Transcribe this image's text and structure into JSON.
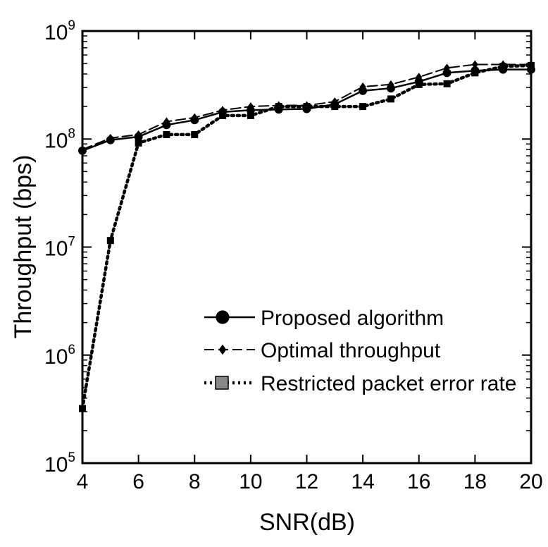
{
  "chart_data": {
    "type": "line",
    "xlabel": "SNR(dB)",
    "ylabel": "Throughput (bps)",
    "xlim": [
      4,
      20
    ],
    "ylim": [
      100000,
      1000000000
    ],
    "yscale": "log",
    "x_ticks": [
      "4",
      "6",
      "8",
      "10",
      "12",
      "14",
      "16",
      "18",
      "20"
    ],
    "y_ticks": [
      {
        "base": "10",
        "exp": "5",
        "value": 100000
      },
      {
        "base": "10",
        "exp": "6",
        "value": 1000000
      },
      {
        "base": "10",
        "exp": "7",
        "value": 10000000
      },
      {
        "base": "10",
        "exp": "8",
        "value": 100000000
      },
      {
        "base": "10",
        "exp": "9",
        "value": 1000000000
      }
    ],
    "legend_position": "lower-right",
    "x": [
      4,
      5,
      6,
      7,
      8,
      9,
      10,
      11,
      12,
      13,
      14,
      15,
      16,
      17,
      18,
      19,
      20
    ],
    "series": [
      {
        "name": "Proposed algorithm",
        "marker": "circle",
        "line": "solid",
        "values": [
          78000000,
          98000000,
          105000000,
          135000000,
          150000000,
          178000000,
          185000000,
          188000000,
          190000000,
          210000000,
          280000000,
          295000000,
          340000000,
          410000000,
          430000000,
          440000000,
          440000000
        ]
      },
      {
        "name": "Optimal throughput",
        "marker": "diamond",
        "line": "dashed",
        "values": [
          80000000,
          102000000,
          110000000,
          145000000,
          158000000,
          185000000,
          200000000,
          205000000,
          205000000,
          222000000,
          305000000,
          320000000,
          375000000,
          455000000,
          490000000,
          490000000,
          490000000
        ]
      },
      {
        "name": "Restricted packet error rate",
        "marker": "square",
        "line": "dotted",
        "values": [
          320000,
          11500000,
          92000000,
          110000000,
          110000000,
          165000000,
          165000000,
          200000000,
          200000000,
          200000000,
          200000000,
          235000000,
          320000000,
          325000000,
          410000000,
          470000000,
          480000000
        ]
      }
    ]
  }
}
